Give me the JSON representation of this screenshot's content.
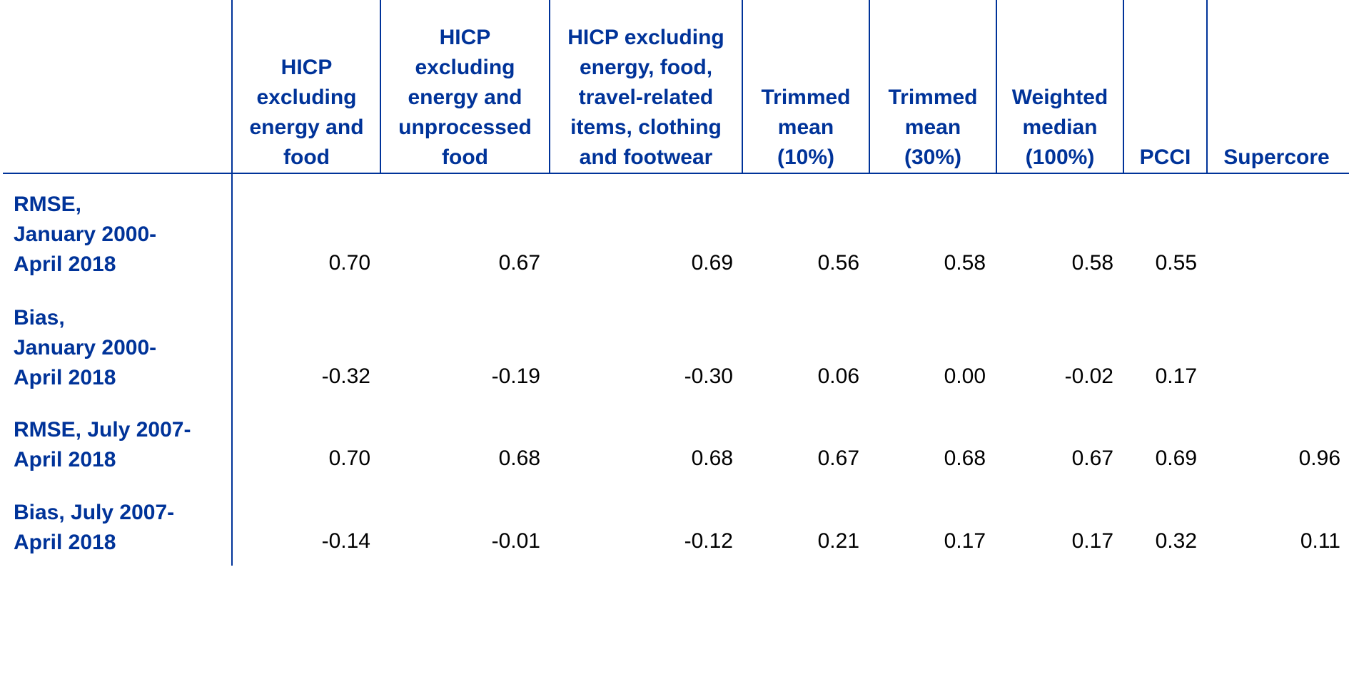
{
  "chart_data": {
    "type": "table",
    "columns": [
      "HICP excluding energy and food",
      "HICP excluding energy and unprocessed food",
      "HICP excluding energy, food, travel-related items, clothing and footwear",
      "Trimmed mean (10%)",
      "Trimmed mean (30%)",
      "Weighted median (100%)",
      "PCCI",
      "Supercore"
    ],
    "column_lines": [
      [
        "HICP",
        "excluding",
        "energy and",
        "food"
      ],
      [
        "HICP",
        "excluding",
        "energy and",
        "unprocessed",
        "food"
      ],
      [
        "HICP excluding",
        "energy, food,",
        "travel-related",
        "items, clothing",
        "and footwear"
      ],
      [
        "Trimmed",
        "mean",
        "(10%)"
      ],
      [
        "Trimmed",
        "mean",
        "(30%)"
      ],
      [
        "Weighted",
        "median",
        "(100%)"
      ],
      [
        "PCCI"
      ],
      [
        "Supercore"
      ]
    ],
    "rows": [
      {
        "label": "RMSE, January 2000-April 2018",
        "label_lines": [
          "RMSE,",
          "January 2000-",
          "April 2018"
        ],
        "values": [
          "0.70",
          "0.67",
          "0.69",
          "0.56",
          "0.58",
          "0.58",
          "0.55",
          ""
        ]
      },
      {
        "label": "Bias, January 2000-April 2018",
        "label_lines": [
          "Bias,",
          "January 2000-",
          "April 2018"
        ],
        "values": [
          "-0.32",
          "-0.19",
          "-0.30",
          "0.06",
          "0.00",
          "-0.02",
          "0.17",
          ""
        ]
      },
      {
        "label": "RMSE, July 2007-April 2018",
        "label_lines": [
          "RMSE, July 2007-",
          "April 2018"
        ],
        "values": [
          "0.70",
          "0.68",
          "0.68",
          "0.67",
          "0.68",
          "0.67",
          "0.69",
          "0.96"
        ]
      },
      {
        "label": "Bias, July 2007-April 2018",
        "label_lines": [
          "Bias, July 2007-",
          "April 2018"
        ],
        "values": [
          "-0.14",
          "-0.01",
          "-0.12",
          "0.21",
          "0.17",
          "0.17",
          "0.32",
          "0.11"
        ]
      }
    ]
  },
  "colors": {
    "header_text": "#003399",
    "rules": "#003399",
    "value_text": "#000000"
  }
}
